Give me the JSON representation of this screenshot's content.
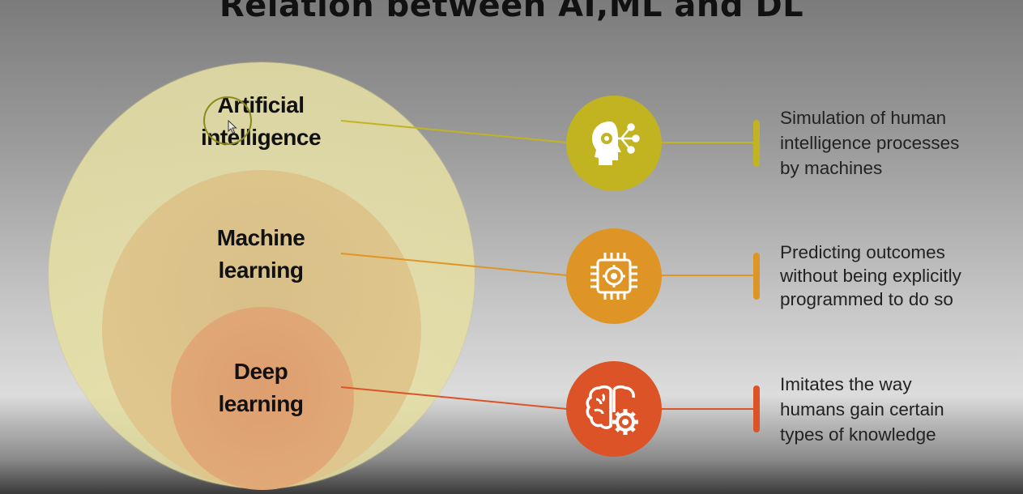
{
  "title": "Relation between AI,ML and DL",
  "levels": [
    {
      "name": "Artificial\nintelligence",
      "description": "Simulation of human\nintelligence processes\nby machines",
      "icon": "ai-head-circuit-icon",
      "color": "#c2b420"
    },
    {
      "name": "Machine\nlearning",
      "description": "Predicting outcomes\nwithout being explicitly\nprogrammed to do so",
      "icon": "chip-gear-icon",
      "color": "#df9526"
    },
    {
      "name": "Deep\nlearning",
      "description": "Imitates the way\nhumans gain certain\ntypes of knowledge",
      "icon": "brain-gear-icon",
      "color": "#dc5327"
    }
  ]
}
